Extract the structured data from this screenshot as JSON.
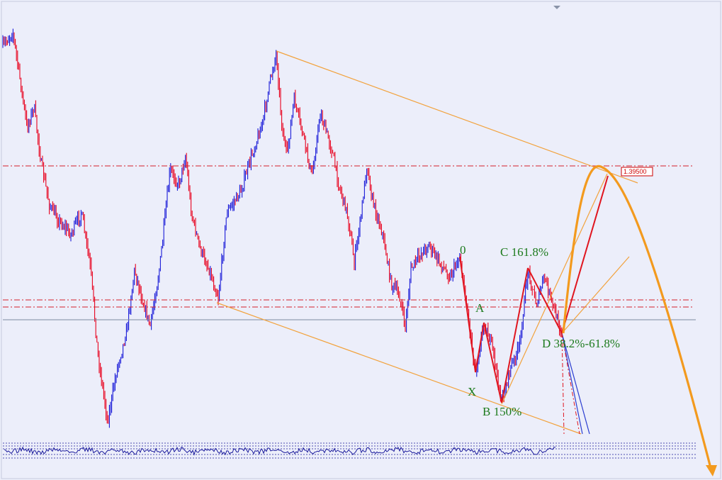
{
  "chart_data": {
    "type": "line",
    "title": "",
    "xlabel": "",
    "ylabel": "",
    "grid": false,
    "price_label": "1.39500",
    "colors": {
      "background": "#eceefa",
      "bull_candle": "#e8001c",
      "bear_candle": "#1a1ad8",
      "channel": "#f2a23c",
      "forecast_arrow": "#f39a1e",
      "level_line": "#d4202a",
      "baseline": "#7c8aa0",
      "pattern_leg": "#e0151f",
      "pattern_text": "#1c7a1c",
      "projection": "#2a3cd0",
      "oscillator": "#1a1a9c"
    },
    "pattern_labels": [
      {
        "text": "0"
      },
      {
        "text": "A"
      },
      {
        "text": "X"
      },
      {
        "text": "B 150%"
      },
      {
        "text": "C 161.8%"
      },
      {
        "text": "D 38.2%-61.8%"
      }
    ]
  }
}
